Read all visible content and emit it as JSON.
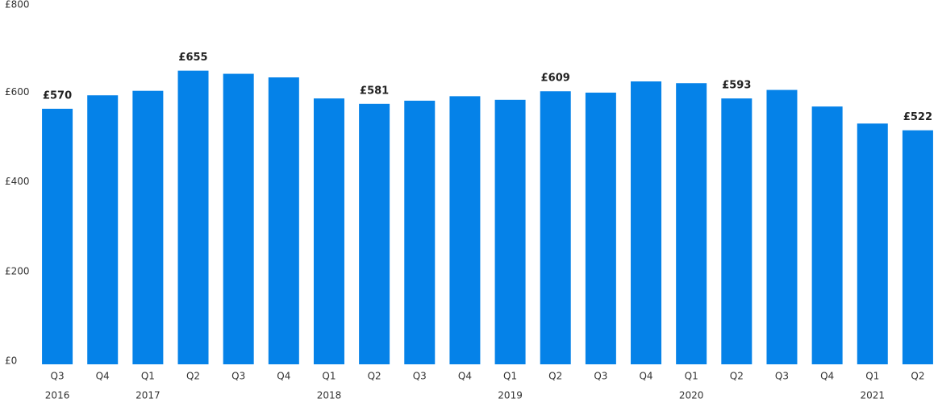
{
  "chart_data": {
    "type": "bar",
    "categories": [
      "Q3",
      "Q4",
      "Q1",
      "Q2",
      "Q3",
      "Q4",
      "Q1",
      "Q2",
      "Q3",
      "Q4",
      "Q1",
      "Q2",
      "Q3",
      "Q4",
      "Q1",
      "Q2",
      "Q3",
      "Q4",
      "Q1",
      "Q2"
    ],
    "year_labels": [
      "2016",
      null,
      "2017",
      null,
      null,
      null,
      "2018",
      null,
      null,
      null,
      "2019",
      null,
      null,
      null,
      "2020",
      null,
      null,
      null,
      "2021",
      null
    ],
    "values": [
      570,
      600,
      610,
      655,
      648,
      640,
      593,
      581,
      588,
      598,
      590,
      609,
      606,
      631,
      627,
      593,
      612,
      575,
      537,
      522
    ],
    "value_labels": [
      "£570",
      null,
      null,
      "£655",
      null,
      null,
      null,
      "£581",
      null,
      null,
      null,
      "£609",
      null,
      null,
      null,
      "£593",
      null,
      null,
      null,
      "£522"
    ],
    "color": "#0582e8",
    "ylim": [
      0,
      800
    ],
    "yticks": [
      {
        "value": 0,
        "label": "£0"
      },
      {
        "value": 200,
        "label": "£200"
      },
      {
        "value": 400,
        "label": "£400"
      },
      {
        "value": 600,
        "label": "£600"
      },
      {
        "value": 800,
        "label": "£800"
      }
    ],
    "grid": false
  }
}
